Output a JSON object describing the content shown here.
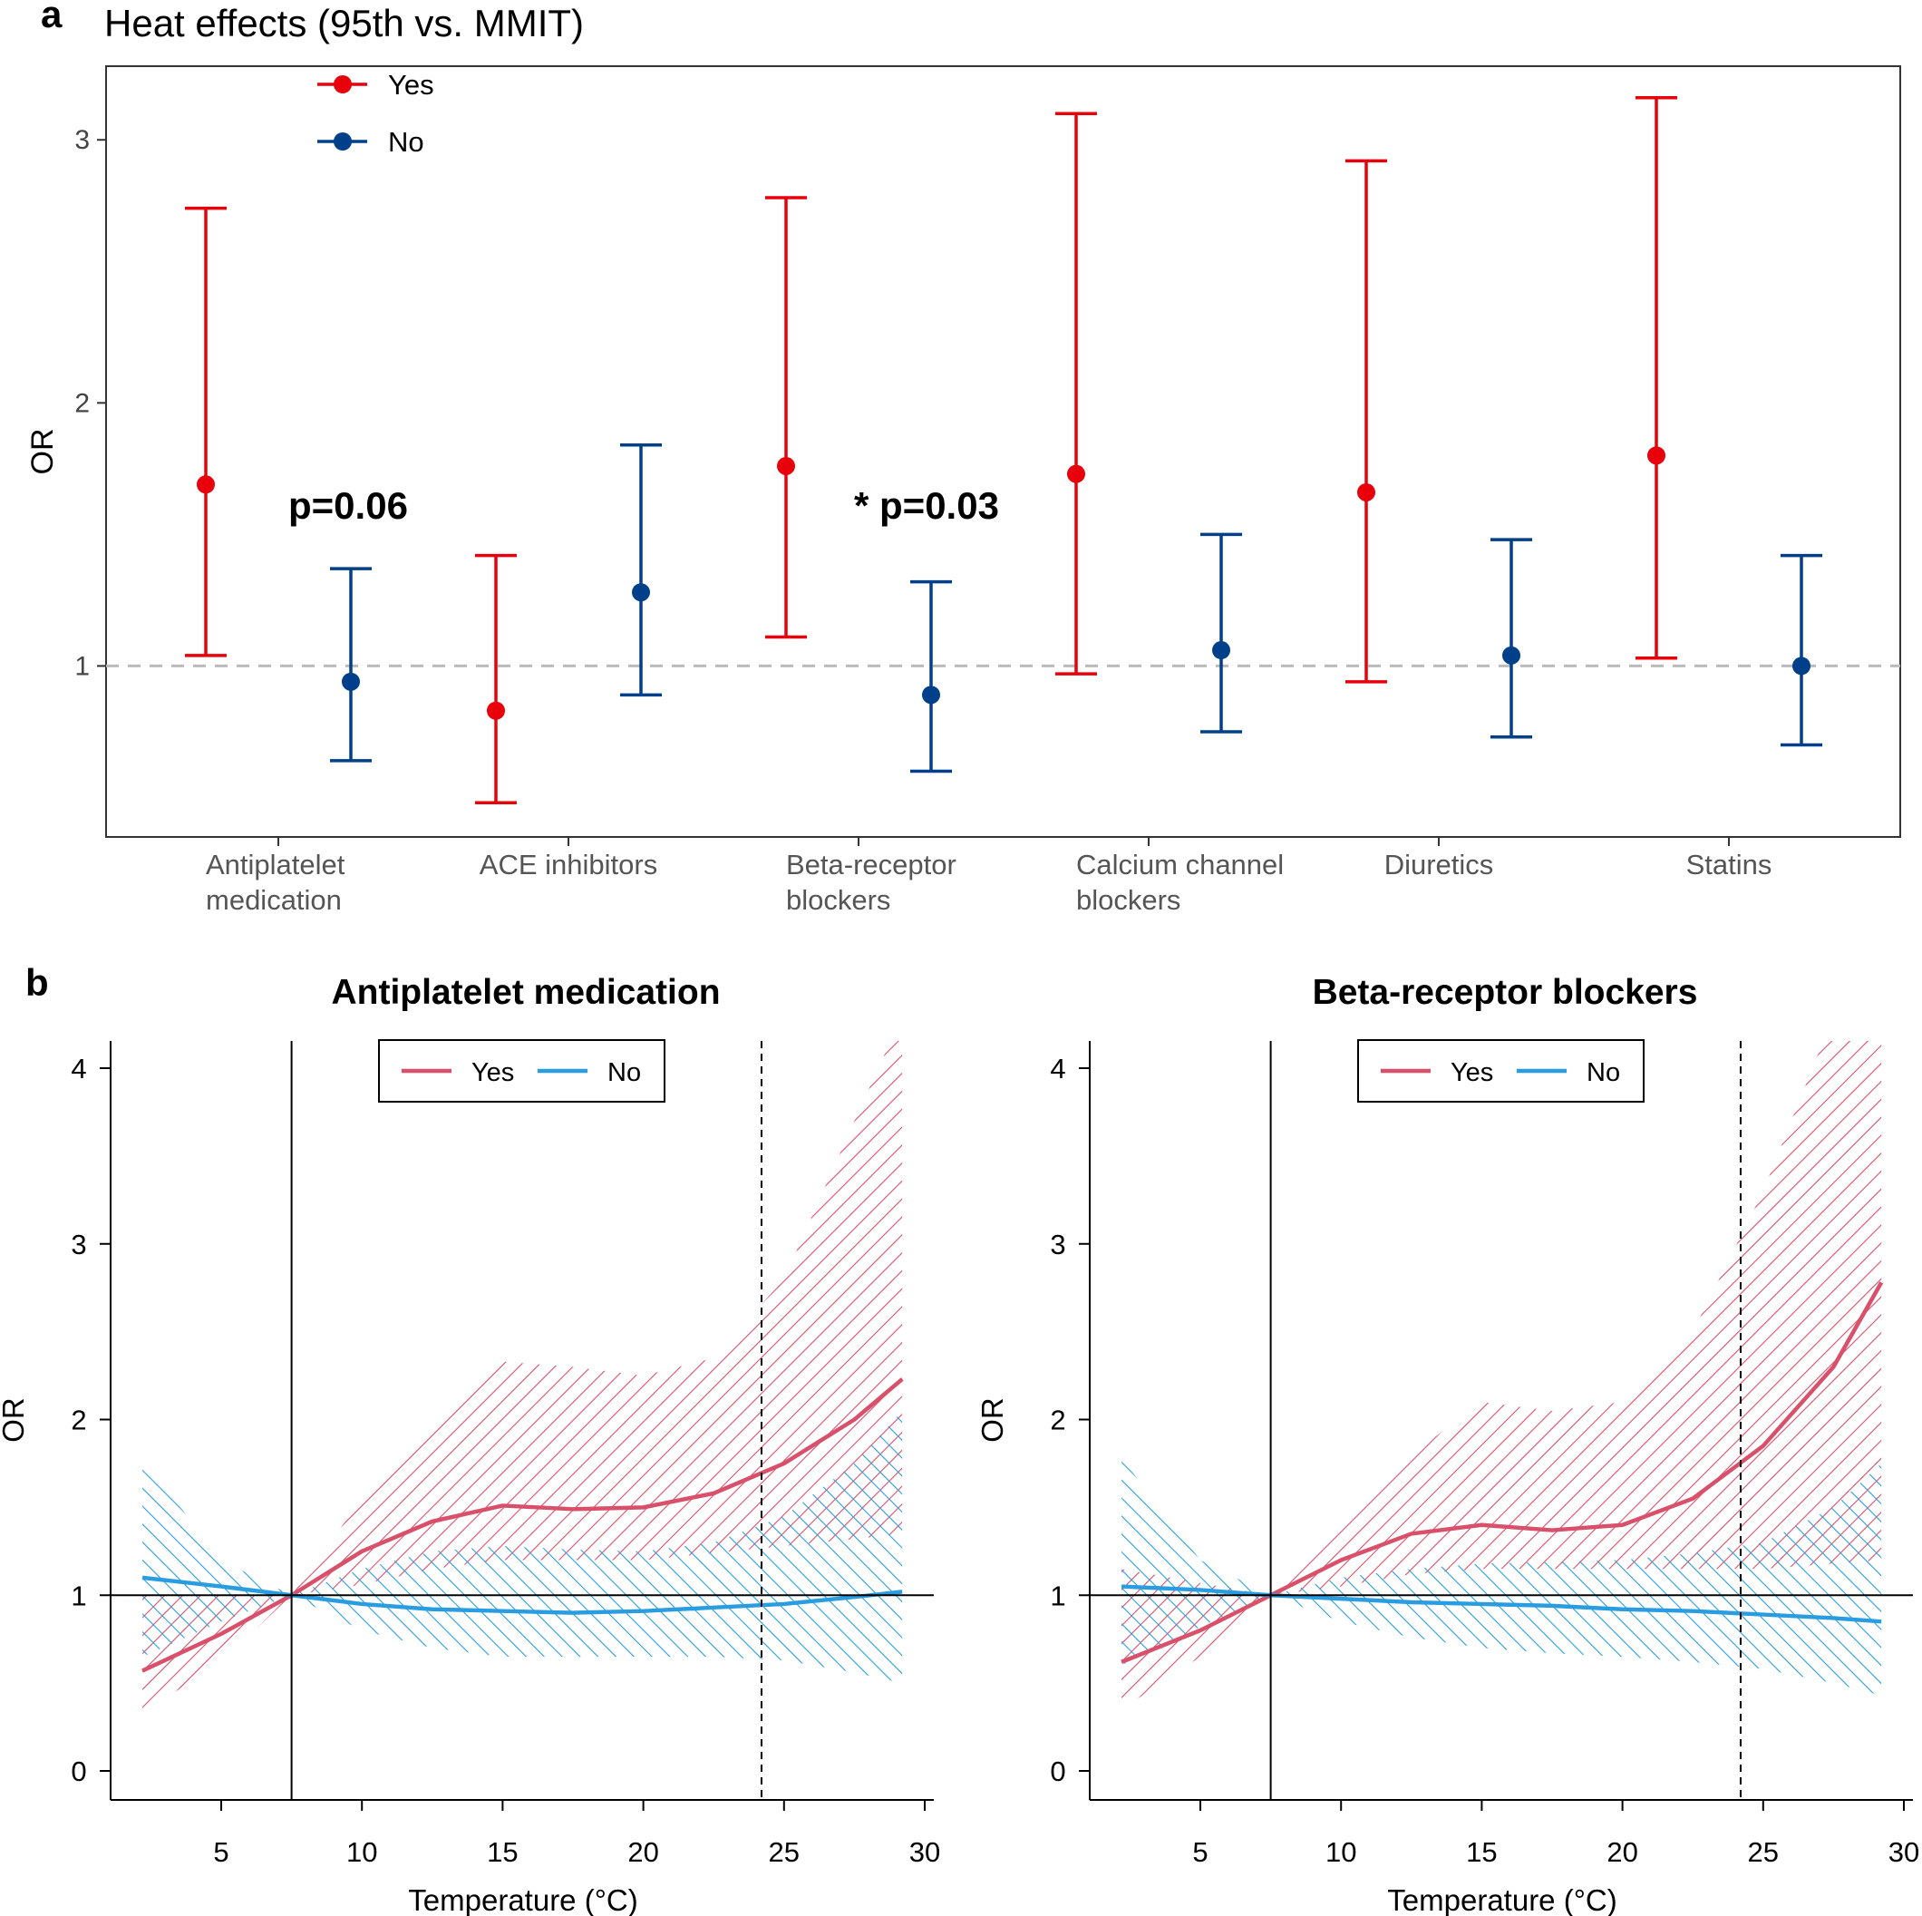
{
  "panel_labels": {
    "a": "a",
    "b": "b"
  },
  "colors": {
    "yes_a": "#e8000b",
    "no_a": "#003f8a",
    "yes_b": "#d9506b",
    "no_b": "#2a9de0",
    "ref_line": "#bbbbbb"
  },
  "chart_data": [
    {
      "type": "errorbar",
      "title": "Heat effects (95th vs. MMIT)",
      "ylabel": "OR",
      "ylim": [
        0.35,
        3.28
      ],
      "yticks": [
        1,
        2,
        3
      ],
      "reference_line": 1,
      "legend": {
        "placement": "top-left",
        "entries": [
          "Yes",
          "No"
        ]
      },
      "categories": [
        "Antiplatelet\nmedication",
        "ACE inhibitors",
        "Beta-receptor\nblockers",
        "Calcium channel\nblockers",
        "Diuretics",
        "Statins"
      ],
      "series": [
        {
          "name": "Yes",
          "values": [
            1.69,
            0.83,
            1.76,
            1.73,
            1.66,
            1.8
          ],
          "lower": [
            1.04,
            0.48,
            1.11,
            0.97,
            0.94,
            1.03
          ],
          "upper": [
            2.74,
            1.42,
            2.78,
            3.1,
            2.92,
            3.16
          ]
        },
        {
          "name": "No",
          "values": [
            0.94,
            1.28,
            0.89,
            1.06,
            1.04,
            1.0
          ],
          "lower": [
            0.64,
            0.89,
            0.6,
            0.75,
            0.73,
            0.7
          ],
          "upper": [
            1.37,
            1.84,
            1.32,
            1.5,
            1.48,
            1.42
          ]
        }
      ],
      "annotations": [
        {
          "category": 0,
          "text": "p=0.06"
        },
        {
          "category": 2,
          "text": "* p=0.03"
        }
      ]
    },
    {
      "type": "line",
      "title": "Antiplatelet medication",
      "xlabel": "Temperature (°C)",
      "ylabel": "OR",
      "xlim": [
        1,
        30.3
      ],
      "ylim": [
        -0.15,
        4.15
      ],
      "xticks": [
        5,
        10,
        15,
        20,
        25,
        30
      ],
      "yticks": [
        0,
        1,
        2,
        3,
        4
      ],
      "reference_line": 1,
      "mmit": 7.5,
      "percentile_95": 24.2,
      "legend": {
        "placement": "top-center",
        "entries": [
          "Yes",
          "No"
        ]
      },
      "series": [
        {
          "name": "Yes",
          "x": [
            2.2,
            5,
            7.5,
            10,
            12.5,
            15,
            17.5,
            20,
            22.5,
            25,
            27.5,
            29.2
          ],
          "y": [
            0.57,
            0.78,
            1.0,
            1.25,
            1.42,
            1.51,
            1.49,
            1.5,
            1.58,
            1.75,
            2.0,
            2.23
          ],
          "lower": [
            0.33,
            0.62,
            1.0,
            1.06,
            1.15,
            1.2,
            1.2,
            1.2,
            1.24,
            1.28,
            1.32,
            1.35
          ],
          "upper": [
            1.0,
            1.0,
            1.0,
            1.55,
            1.95,
            2.33,
            2.3,
            2.25,
            2.35,
            2.8,
            3.7,
            4.3
          ]
        },
        {
          "name": "No",
          "x": [
            2.2,
            5,
            7.5,
            10,
            12.5,
            15,
            17.5,
            20,
            22.5,
            25,
            27.5,
            29.2
          ],
          "y": [
            1.1,
            1.05,
            1.0,
            0.95,
            0.92,
            0.91,
            0.9,
            0.91,
            0.93,
            0.95,
            0.99,
            1.02
          ],
          "lower": [
            0.65,
            0.85,
            1.0,
            0.8,
            0.7,
            0.65,
            0.65,
            0.65,
            0.65,
            0.63,
            0.56,
            0.5
          ],
          "upper": [
            1.78,
            1.2,
            1.0,
            1.15,
            1.25,
            1.28,
            1.26,
            1.25,
            1.3,
            1.45,
            1.75,
            2.05
          ]
        }
      ]
    },
    {
      "type": "line",
      "title": "Beta-receptor blockers",
      "xlabel": "Temperature (°C)",
      "ylabel": "OR",
      "xlim": [
        1,
        30.3
      ],
      "ylim": [
        -0.15,
        4.15
      ],
      "xticks": [
        5,
        10,
        15,
        20,
        25,
        30
      ],
      "yticks": [
        0,
        1,
        2,
        3,
        4
      ],
      "reference_line": 1,
      "mmit": 7.5,
      "percentile_95": 24.2,
      "legend": {
        "placement": "top-center",
        "entries": [
          "Yes",
          "No"
        ]
      },
      "series": [
        {
          "name": "Yes",
          "x": [
            2.2,
            5,
            7.5,
            10,
            12.5,
            15,
            17.5,
            20,
            22.5,
            25,
            27.5,
            29.2
          ],
          "y": [
            0.62,
            0.8,
            1.0,
            1.2,
            1.35,
            1.4,
            1.37,
            1.4,
            1.55,
            1.85,
            2.3,
            2.78
          ],
          "lower": [
            0.35,
            0.65,
            1.0,
            1.05,
            1.12,
            1.15,
            1.15,
            1.15,
            1.15,
            1.15,
            1.18,
            1.2
          ],
          "upper": [
            1.15,
            1.07,
            1.0,
            1.45,
            1.8,
            2.1,
            2.05,
            2.1,
            2.5,
            3.3,
            4.3,
            4.3
          ]
        },
        {
          "name": "No",
          "x": [
            2.2,
            5,
            7.5,
            10,
            12.5,
            15,
            17.5,
            20,
            22.5,
            25,
            27.5,
            29.2
          ],
          "y": [
            1.05,
            1.03,
            1.0,
            0.98,
            0.96,
            0.95,
            0.94,
            0.92,
            0.91,
            0.89,
            0.87,
            0.85
          ],
          "lower": [
            0.6,
            0.82,
            1.0,
            0.85,
            0.76,
            0.7,
            0.67,
            0.65,
            0.62,
            0.58,
            0.5,
            0.43
          ],
          "upper": [
            1.78,
            1.2,
            1.0,
            1.1,
            1.15,
            1.18,
            1.19,
            1.2,
            1.24,
            1.3,
            1.5,
            1.75
          ]
        }
      ]
    }
  ]
}
